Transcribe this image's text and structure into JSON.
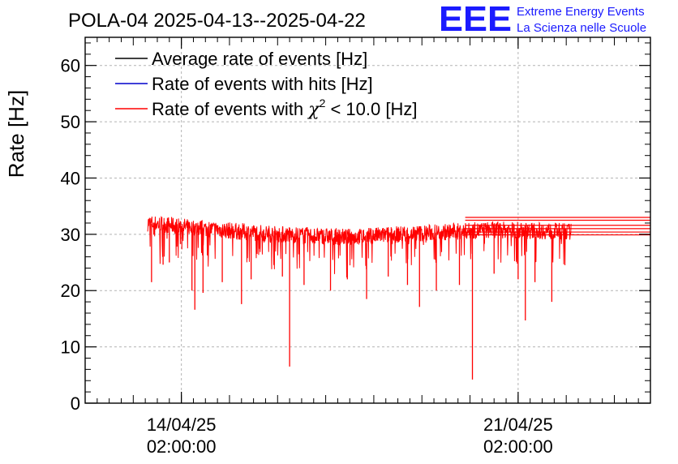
{
  "title": "POLA-04 2025-04-13--2025-04-22",
  "logo": {
    "mark": "EEE",
    "line1": "Extreme Energy Events",
    "line2": "La Scienza nelle Scuole",
    "color": "#1a1aff"
  },
  "legend": {
    "placement": "top-left",
    "entries": [
      {
        "text": "Average rate of events [Hz]",
        "color": "#000000"
      },
      {
        "text": "Rate of events with hits [Hz]",
        "color": "#0000cc"
      },
      {
        "text_before": "Rate of events with ",
        "symbol": "χ",
        "superscript": "2",
        "text_after": " < 10.0 [Hz]",
        "color": "#ff0000"
      }
    ]
  },
  "chart_data": {
    "type": "line",
    "title": "POLA-04 2025-04-13--2025-04-22",
    "xlabel": "",
    "ylabel": "Rate [Hz]",
    "ylim": [
      0,
      65
    ],
    "yticks": [
      0,
      10,
      20,
      30,
      40,
      50,
      60
    ],
    "xticks": [
      {
        "day": 1.0,
        "line1": "14/04/25",
        "line2": "02:00:00"
      },
      {
        "day": 8.0,
        "line1": "21/04/25",
        "line2": "02:00:00"
      }
    ],
    "xlim_days": [
      -1.0,
      10.75
    ],
    "grid": true,
    "series": [
      {
        "name": "Rate of events with χ2 < 10.0 [Hz]",
        "color": "#ff0000",
        "x_start_day": 0.3,
        "x_end_day": 9.1,
        "baseline": [
          [
            0.3,
            32.0
          ],
          [
            1.5,
            31.0
          ],
          [
            3.0,
            30.0
          ],
          [
            4.5,
            29.5
          ],
          [
            6.0,
            30.2
          ],
          [
            7.5,
            30.8
          ],
          [
            9.1,
            30.5
          ]
        ],
        "band": 3.0,
        "dips": [
          {
            "day": 0.38,
            "value": 21.5
          },
          {
            "day": 0.62,
            "value": 24.6
          },
          {
            "day": 0.75,
            "value": 25.0
          },
          {
            "day": 1.22,
            "value": 20.0
          },
          {
            "day": 1.28,
            "value": 16.6
          },
          {
            "day": 1.45,
            "value": 19.6
          },
          {
            "day": 1.85,
            "value": 21.5
          },
          {
            "day": 2.25,
            "value": 17.6
          },
          {
            "day": 2.45,
            "value": 22.0
          },
          {
            "day": 3.1,
            "value": 22.5
          },
          {
            "day": 3.25,
            "value": 6.5
          },
          {
            "day": 3.55,
            "value": 21.0
          },
          {
            "day": 4.1,
            "value": 20.0
          },
          {
            "day": 4.45,
            "value": 22.0
          },
          {
            "day": 4.85,
            "value": 18.5
          },
          {
            "day": 5.3,
            "value": 22.5
          },
          {
            "day": 5.7,
            "value": 21.0
          },
          {
            "day": 5.95,
            "value": 17.1
          },
          {
            "day": 6.3,
            "value": 20.0
          },
          {
            "day": 6.78,
            "value": 21.0
          },
          {
            "day": 7.05,
            "value": 4.2
          },
          {
            "day": 7.5,
            "value": 23.0
          },
          {
            "day": 8.0,
            "value": 22.0
          },
          {
            "day": 8.15,
            "value": 14.7
          },
          {
            "day": 8.35,
            "value": 21.5
          },
          {
            "day": 8.7,
            "value": 18.0
          }
        ],
        "tail_lines": [
          33.0,
          32.5,
          31.6,
          31.0,
          30.4,
          29.9
        ]
      }
    ]
  }
}
